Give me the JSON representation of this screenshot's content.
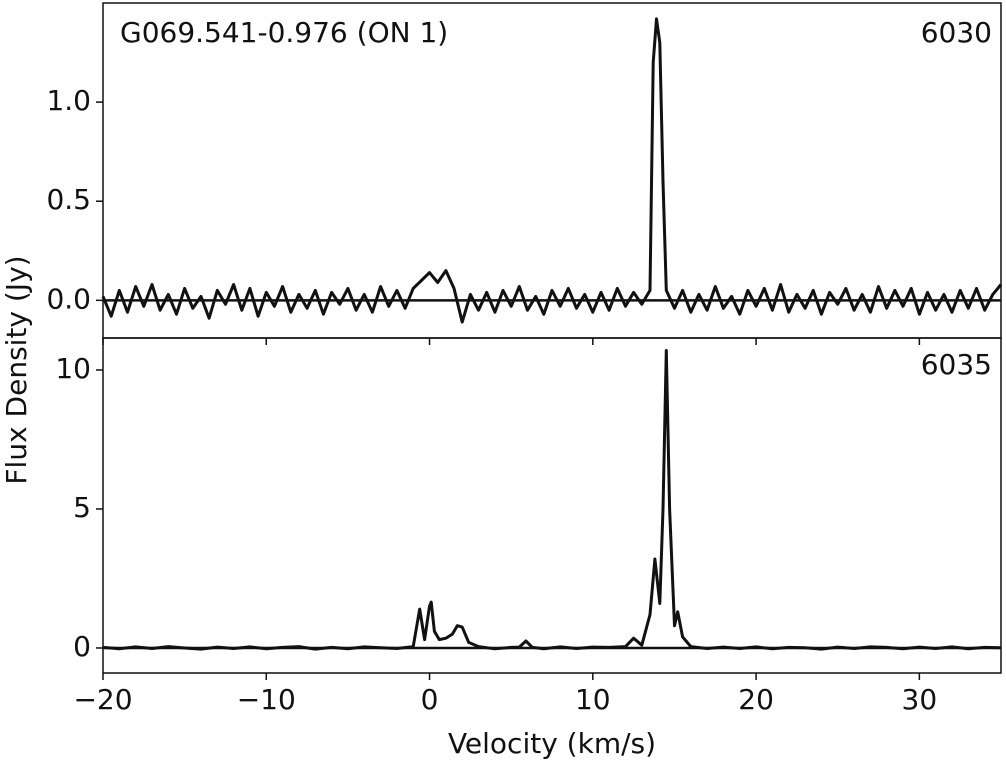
{
  "chart_data": [
    {
      "type": "line",
      "title": "G069.541-0.976 (ON 1)",
      "label": "6030",
      "ylabel": "Flux Density (Jy)",
      "color": "#111111",
      "xlim": [
        -20,
        35
      ],
      "ylim": [
        -0.19,
        1.5
      ],
      "yticks": [
        {
          "value": 0,
          "label": "0.0"
        },
        0.5,
        {
          "value": 1,
          "label": "1.0"
        }
      ],
      "x": [
        -20,
        -19.5,
        -19,
        -18.5,
        -18,
        -17.5,
        -17,
        -16.5,
        -16,
        -15.5,
        -15,
        -14.5,
        -14,
        -13.5,
        -13,
        -12.5,
        -12,
        -11.5,
        -11,
        -10.5,
        -10,
        -9.5,
        -9,
        -8.5,
        -8,
        -7.5,
        -7,
        -6.5,
        -6,
        -5.5,
        -5,
        -4.5,
        -4,
        -3.5,
        -3,
        -2.5,
        -2,
        -1.5,
        -1,
        -0.5,
        0,
        0.5,
        1,
        1.5,
        2,
        2.5,
        3,
        3.5,
        4,
        4.5,
        5,
        5.5,
        6,
        6.5,
        7,
        7.5,
        8,
        8.5,
        9,
        9.5,
        10,
        10.5,
        11,
        11.5,
        12,
        12.5,
        13,
        13.5,
        13.7,
        13.9,
        14.1,
        14.3,
        14.5,
        15,
        15.5,
        16,
        16.5,
        17,
        17.5,
        18,
        18.5,
        19,
        19.5,
        20,
        20.5,
        21,
        21.5,
        22,
        22.5,
        23,
        23.5,
        24,
        24.5,
        25,
        25.5,
        26,
        26.5,
        27,
        27.5,
        28,
        28.5,
        29,
        29.5,
        30,
        30.5,
        31,
        31.5,
        32,
        32.5,
        33,
        33.5,
        34,
        34.5,
        35
      ],
      "values": [
        0.02,
        -0.08,
        0.05,
        -0.06,
        0.07,
        -0.03,
        0.08,
        -0.05,
        0.03,
        -0.07,
        0.06,
        -0.04,
        0.02,
        -0.09,
        0.05,
        -0.02,
        0.08,
        -0.05,
        0.06,
        -0.08,
        0.04,
        -0.03,
        0.07,
        -0.06,
        0.03,
        -0.04,
        0.05,
        -0.07,
        0.04,
        -0.02,
        0.06,
        -0.05,
        0.03,
        -0.06,
        0.07,
        -0.03,
        0.05,
        -0.04,
        0.06,
        0.1,
        0.14,
        0.09,
        0.15,
        0.06,
        -0.11,
        0.03,
        -0.05,
        0.04,
        -0.06,
        0.05,
        -0.03,
        0.07,
        -0.05,
        0.02,
        -0.07,
        0.05,
        -0.03,
        0.06,
        -0.04,
        0.03,
        -0.06,
        0.04,
        -0.05,
        0.06,
        -0.03,
        0.04,
        -0.02,
        0.05,
        1.2,
        1.42,
        1.3,
        0.6,
        0.05,
        -0.04,
        0.05,
        -0.06,
        0.03,
        -0.05,
        0.07,
        -0.04,
        0.02,
        -0.07,
        0.05,
        -0.03,
        0.06,
        -0.05,
        0.08,
        -0.06,
        0.03,
        -0.04,
        0.05,
        -0.07,
        0.04,
        -0.02,
        0.06,
        -0.05,
        0.03,
        -0.06,
        0.07,
        -0.04,
        0.05,
        -0.03,
        0.06,
        -0.07,
        0.04,
        -0.05,
        0.03,
        -0.06,
        0.05,
        -0.04,
        0.06,
        -0.05,
        0.03,
        0.08
      ]
    },
    {
      "type": "line",
      "label": "6035",
      "xlabel": "Velocity (km/s)",
      "color": "#111111",
      "xlim": [
        -20,
        35
      ],
      "ylim": [
        -0.9,
        11.15
      ],
      "xticks": [
        {
          "value": -20,
          "label": "−20"
        },
        {
          "value": -10,
          "label": "−10"
        },
        0,
        10,
        20,
        30
      ],
      "yticks": [
        0,
        5,
        10
      ],
      "x": [
        -20,
        -19,
        -18,
        -17,
        -16,
        -15,
        -14,
        -13,
        -12,
        -11,
        -10,
        -9,
        -8,
        -7,
        -6,
        -5,
        -4,
        -3,
        -2,
        -1,
        -0.6,
        -0.3,
        0,
        0.1,
        0.3,
        0.6,
        1,
        1.4,
        1.7,
        2,
        2.4,
        3,
        4,
        5,
        5.5,
        5.9,
        6.3,
        7,
        8,
        9,
        10,
        11,
        12,
        12.5,
        13,
        13.5,
        13.8,
        14.1,
        14.3,
        14.5,
        14.7,
        15,
        15.2,
        15.5,
        16,
        17,
        18,
        19,
        20,
        21,
        22,
        23,
        24,
        25,
        26,
        27,
        28,
        29,
        30,
        31,
        32,
        33,
        34,
        35
      ],
      "values": [
        0.02,
        -0.03,
        0.04,
        -0.02,
        0.05,
        0,
        -0.04,
        0.03,
        -0.02,
        0.04,
        -0.03,
        0.02,
        0.05,
        -0.04,
        0.02,
        -0.03,
        0.04,
        0.01,
        -0.02,
        0.05,
        1.4,
        0.3,
        1.5,
        1.65,
        0.6,
        0.3,
        0.35,
        0.5,
        0.8,
        0.75,
        0.2,
        0.05,
        -0.03,
        0.02,
        0.03,
        0.25,
        0.02,
        -0.03,
        0.04,
        -0.02,
        0.03,
        0.02,
        0.05,
        0.35,
        0.1,
        1.2,
        3.2,
        1.6,
        5,
        10.7,
        5,
        0.8,
        1.3,
        0.4,
        0.05,
        -0.02,
        0.03,
        -0.02,
        0.04,
        -0.03,
        0.02,
        0.01,
        -0.04,
        0.03,
        -0.02,
        0.04,
        0.02,
        -0.03,
        0.03,
        -0.02,
        0.04,
        -0.03,
        0.02,
        0.01
      ]
    }
  ]
}
